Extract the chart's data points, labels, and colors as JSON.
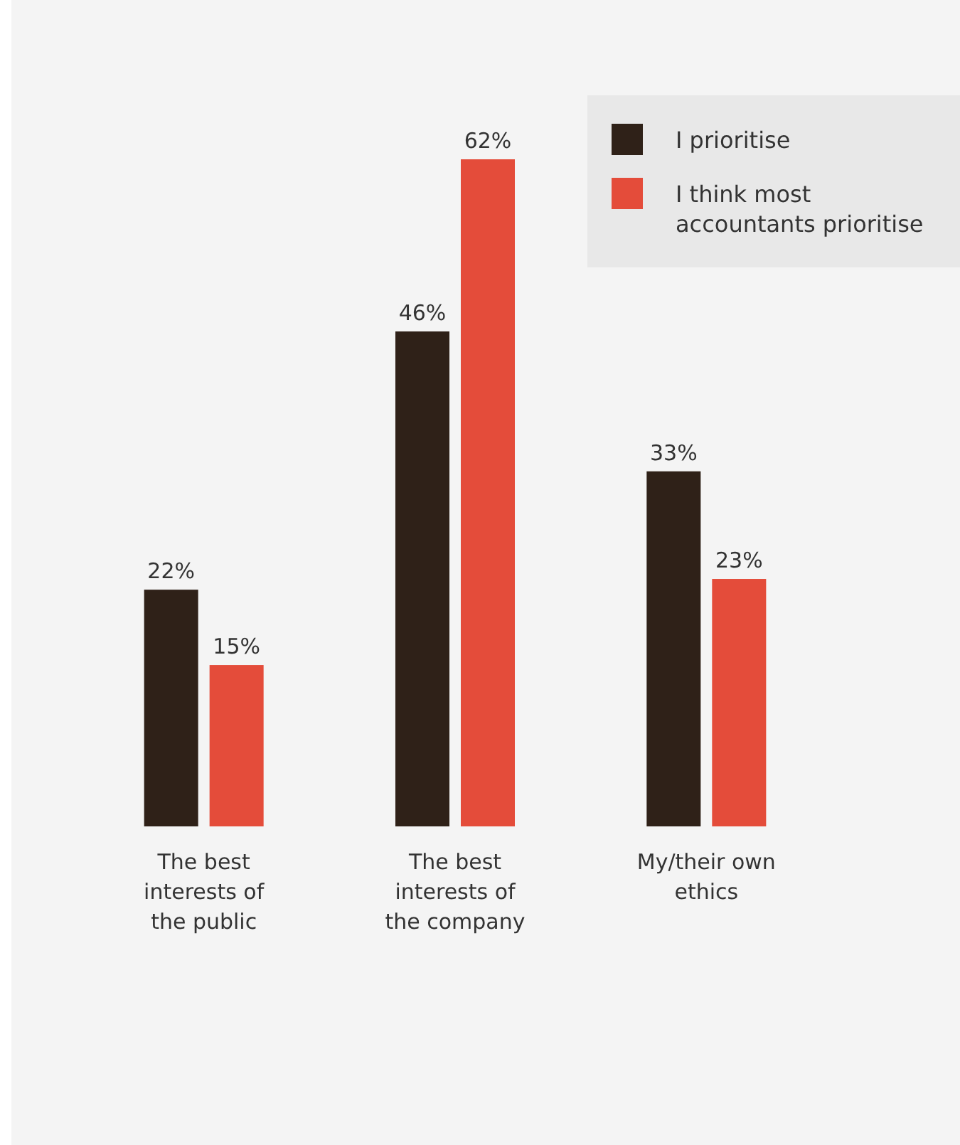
{
  "chart_data": {
    "type": "bar",
    "categories": [
      "The best interests of the public",
      "The best interests of the company",
      "My/their own ethics"
    ],
    "series": [
      {
        "name": "I prioritise",
        "color": "#2f2118",
        "values": [
          22,
          46,
          33
        ],
        "value_labels": [
          "22%",
          "46%",
          "33%"
        ]
      },
      {
        "name": "I think most accountants prioritise",
        "color": "#e44c3a",
        "values": [
          15,
          62,
          23
        ],
        "value_labels": [
          "15%",
          "62%",
          "23%"
        ]
      }
    ],
    "legend": "top right"
  }
}
